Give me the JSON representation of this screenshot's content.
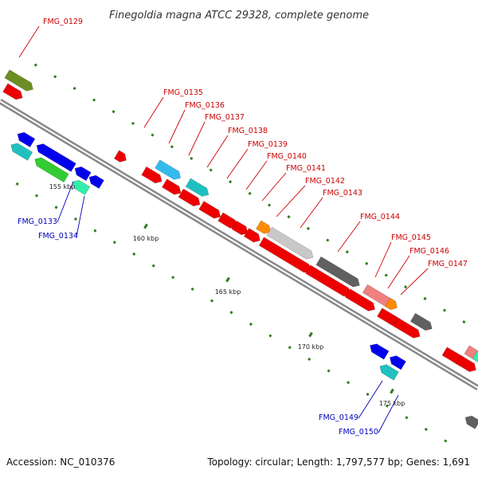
{
  "title": "Finegoldia magna ATCC 29328, complete genome",
  "footer": {
    "accession": "Accession: NC_010376",
    "summary": "Topology: circular; Length: 1,797,577 bp; Genes: 1,691"
  },
  "colors": {
    "backbone": "#888888",
    "tick": "#2f7d1c",
    "forward_label": "#cc0000",
    "reverse_label": "#0000bb"
  },
  "scale_labels": [
    {
      "kbp": 155,
      "text": "155 kbp"
    },
    {
      "kbp": 160,
      "text": "160 kbp"
    },
    {
      "kbp": 165,
      "text": "165 kbp"
    },
    {
      "kbp": 170,
      "text": "170 kbp"
    },
    {
      "kbp": 175,
      "text": "175 kbp"
    }
  ],
  "gene_labels": [
    {
      "text": "FMG_0129",
      "strand": "forward"
    },
    {
      "text": "FMG_0133",
      "strand": "reverse"
    },
    {
      "text": "FMG_0134",
      "strand": "reverse"
    },
    {
      "text": "FMG_0135",
      "strand": "forward"
    },
    {
      "text": "FMG_0136",
      "strand": "forward"
    },
    {
      "text": "FMG_0137",
      "strand": "forward"
    },
    {
      "text": "FMG_0138",
      "strand": "forward"
    },
    {
      "text": "FMG_0139",
      "strand": "forward"
    },
    {
      "text": "FMG_0140",
      "strand": "forward"
    },
    {
      "text": "FMG_0141",
      "strand": "forward"
    },
    {
      "text": "FMG_0142",
      "strand": "forward"
    },
    {
      "text": "FMG_0143",
      "strand": "forward"
    },
    {
      "text": "FMG_0144",
      "strand": "forward"
    },
    {
      "text": "FMG_0145",
      "strand": "forward"
    },
    {
      "text": "FMG_0146",
      "strand": "forward"
    },
    {
      "text": "FMG_0147",
      "strand": "forward"
    },
    {
      "text": "FMG_0149",
      "strand": "reverse"
    },
    {
      "text": "FMG_0150",
      "strand": "reverse"
    }
  ],
  "features": [
    {
      "track": "outer2",
      "color": "#6b8e23"
    },
    {
      "track": "outer1",
      "color": "#ee0000"
    },
    {
      "track": "inner1",
      "color": "#0000ee"
    },
    {
      "track": "inner2",
      "color": "#20c0c0"
    },
    {
      "track": "inner1",
      "color": "#0000ee"
    },
    {
      "track": "inner2",
      "color": "#33cc33"
    },
    {
      "track": "inner1",
      "color": "#0000ee"
    },
    {
      "track": "inner1",
      "color": "#0000ee"
    },
    {
      "track": "inner1",
      "color": "#0000ee"
    },
    {
      "track": "inner2",
      "color": "#33eeaa"
    },
    {
      "track": "outer1",
      "color": "#ee0000"
    },
    {
      "track": "outer2",
      "color": "#33bbee"
    },
    {
      "track": "outer1",
      "color": "#ee0000"
    },
    {
      "track": "outer1",
      "color": "#ee0000"
    },
    {
      "track": "outer2",
      "color": "#20c0c0"
    },
    {
      "track": "outer1",
      "color": "#ee0000"
    },
    {
      "track": "outer1",
      "color": "#ee0000"
    },
    {
      "track": "outer1",
      "color": "#ee0000"
    },
    {
      "track": "outer1",
      "color": "#ee0000"
    },
    {
      "track": "outer2",
      "color": "#ff8c00"
    },
    {
      "track": "outer2",
      "color": "#c8c8c8"
    },
    {
      "track": "outer1",
      "color": "#ee0000"
    },
    {
      "track": "outer1",
      "color": "#ee0000"
    },
    {
      "track": "outer1",
      "color": "#ee0000"
    },
    {
      "track": "outer2",
      "color": "#606060"
    },
    {
      "track": "outer2",
      "color": "#f08080"
    },
    {
      "track": "outer1",
      "color": "#ee0000"
    },
    {
      "track": "outer2",
      "color": "#ff8c00"
    },
    {
      "track": "outer1",
      "color": "#ee0000"
    },
    {
      "track": "outer1",
      "color": "#ee0000"
    },
    {
      "track": "outer1",
      "color": "#ee0000"
    },
    {
      "track": "outer2",
      "color": "#606060"
    },
    {
      "track": "outer2",
      "color": "#f08080"
    },
    {
      "track": "outer1",
      "color": "#ee0000"
    },
    {
      "track": "inner1",
      "color": "#0000ee"
    },
    {
      "track": "inner1",
      "color": "#0000ee"
    },
    {
      "track": "inner2",
      "color": "#20c0c0"
    },
    {
      "track": "outer1",
      "color": "#ee0000"
    },
    {
      "track": "outer2",
      "color": "#33eeaa"
    },
    {
      "track": "inner2",
      "color": "#606060"
    },
    {
      "track": "inner1",
      "color": "#0000ee"
    }
  ]
}
